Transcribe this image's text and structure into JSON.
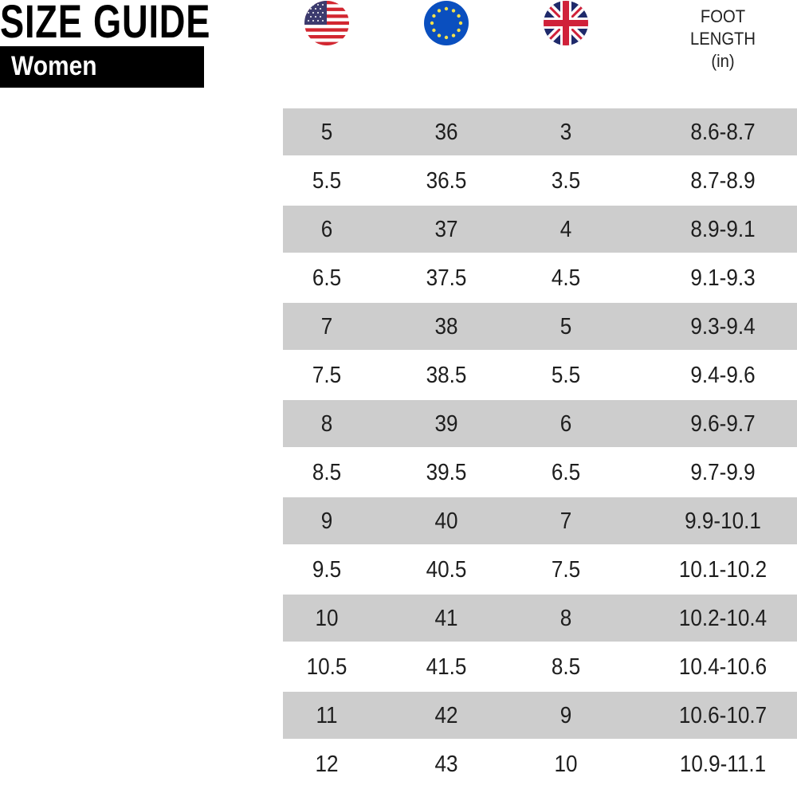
{
  "header": {
    "title": "SIZE GUIDE",
    "category": "Women"
  },
  "columns": [
    {
      "icon": "us-flag-icon"
    },
    {
      "icon": "eu-flag-icon"
    },
    {
      "icon": "uk-flag-icon"
    },
    {
      "label_lines": [
        "FOOT",
        "LENGTH",
        "(in)"
      ]
    }
  ],
  "colors": {
    "shade": "#cdcdcd",
    "badge": "#000000"
  },
  "rows": [
    [
      "5",
      "36",
      "3",
      "8.6-8.7"
    ],
    [
      "5.5",
      "36.5",
      "3.5",
      "8.7-8.9"
    ],
    [
      "6",
      "37",
      "4",
      "8.9-9.1"
    ],
    [
      "6.5",
      "37.5",
      "4.5",
      "9.1-9.3"
    ],
    [
      "7",
      "38",
      "5",
      "9.3-9.4"
    ],
    [
      "7.5",
      "38.5",
      "5.5",
      "9.4-9.6"
    ],
    [
      "8",
      "39",
      "6",
      "9.6-9.7"
    ],
    [
      "8.5",
      "39.5",
      "6.5",
      "9.7-9.9"
    ],
    [
      "9",
      "40",
      "7",
      "9.9-10.1"
    ],
    [
      "9.5",
      "40.5",
      "7.5",
      "10.1-10.2"
    ],
    [
      "10",
      "41",
      "8",
      "10.2-10.4"
    ],
    [
      "10.5",
      "41.5",
      "8.5",
      "10.4-10.6"
    ],
    [
      "11",
      "42",
      "9",
      "10.6-10.7"
    ],
    [
      "12",
      "43",
      "10",
      "10.9-11.1"
    ]
  ]
}
